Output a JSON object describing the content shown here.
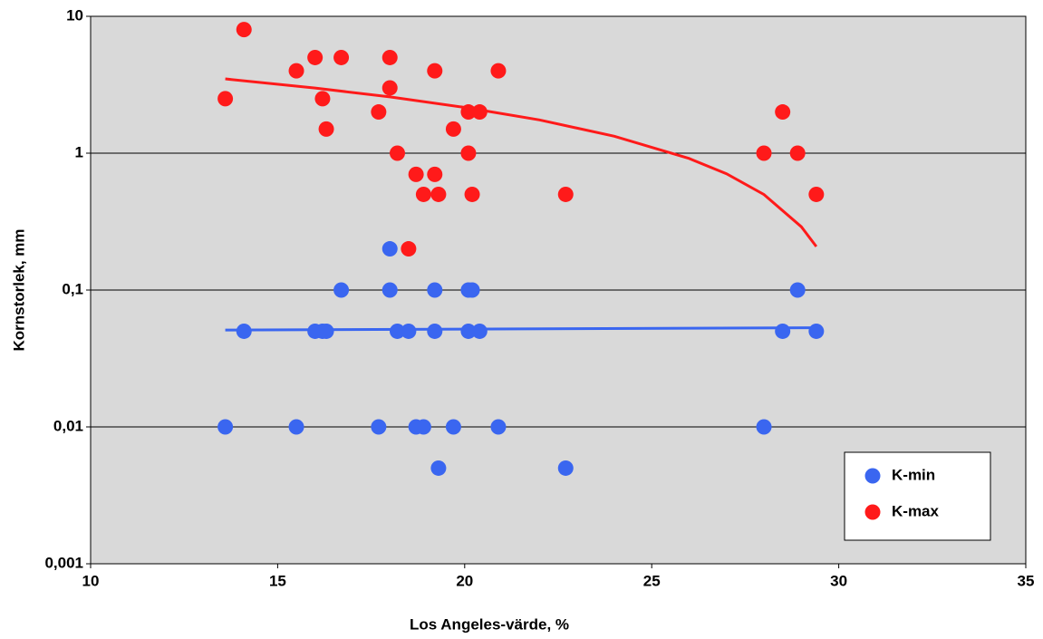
{
  "chart_data": {
    "type": "scatter",
    "xlabel": "Los Angeles-värde, %",
    "ylabel": "Kornstorlek, mm",
    "xlim": [
      10,
      35
    ],
    "xticks": [
      10,
      15,
      20,
      25,
      30,
      35
    ],
    "ylim": [
      0.001,
      10
    ],
    "log_y": true,
    "grid": true,
    "legend": "lower right",
    "yticks": [
      {
        "value": 0.001,
        "label": "0,001"
      },
      {
        "value": 0.01,
        "label": "0,01"
      },
      {
        "value": 0.1,
        "label": "0,1"
      },
      1,
      10
    ],
    "series": [
      {
        "name": "K-min",
        "color": "#3a66f0",
        "x": [
          13.6,
          14.1,
          15.5,
          16.0,
          16.2,
          16.3,
          16.7,
          17.7,
          18.0,
          18.0,
          18.2,
          18.5,
          18.7,
          18.9,
          19.2,
          19.2,
          19.3,
          19.7,
          20.1,
          20.2,
          20.1,
          20.4,
          20.9,
          22.7,
          28.0,
          28.5,
          28.9,
          29.4
        ],
        "values": [
          0.01,
          0.05,
          0.01,
          0.05,
          0.05,
          0.05,
          0.1,
          0.01,
          0.2,
          0.1,
          0.05,
          0.05,
          0.01,
          0.01,
          0.1,
          0.05,
          0.005,
          0.01,
          0.1,
          0.1,
          0.05,
          0.05,
          0.01,
          0.005,
          0.01,
          0.05,
          0.1,
          0.05
        ]
      },
      {
        "name": "K-max",
        "color": "#ff1a1a",
        "x": [
          13.6,
          14.1,
          15.5,
          16.0,
          16.2,
          16.3,
          16.7,
          17.7,
          18.0,
          18.0,
          18.2,
          18.5,
          18.7,
          18.9,
          19.2,
          19.2,
          19.3,
          19.7,
          20.1,
          20.1,
          20.2,
          20.4,
          20.9,
          22.7,
          28.0,
          28.5,
          28.9,
          29.4
        ],
        "values": [
          2.5,
          8,
          4,
          5,
          2.5,
          1.5,
          5,
          2,
          5,
          3,
          1,
          0.2,
          0.7,
          0.5,
          4,
          0.7,
          0.5,
          1.5,
          2,
          1,
          0.5,
          2,
          4,
          0.5,
          1,
          2,
          1,
          0.5
        ]
      }
    ],
    "trendlines": [
      {
        "color": "#3a66f0",
        "x": [
          13.6,
          29.4
        ],
        "values": [
          0.051,
          0.053
        ]
      },
      {
        "color": "#ff1a1a",
        "x": [
          13.6,
          16,
          18,
          20,
          22,
          24,
          26,
          27,
          28,
          29,
          29.4
        ],
        "values": [
          3.49,
          2.99,
          2.58,
          2.16,
          1.75,
          1.33,
          0.915,
          0.707,
          0.499,
          0.29,
          0.208
        ]
      }
    ]
  }
}
